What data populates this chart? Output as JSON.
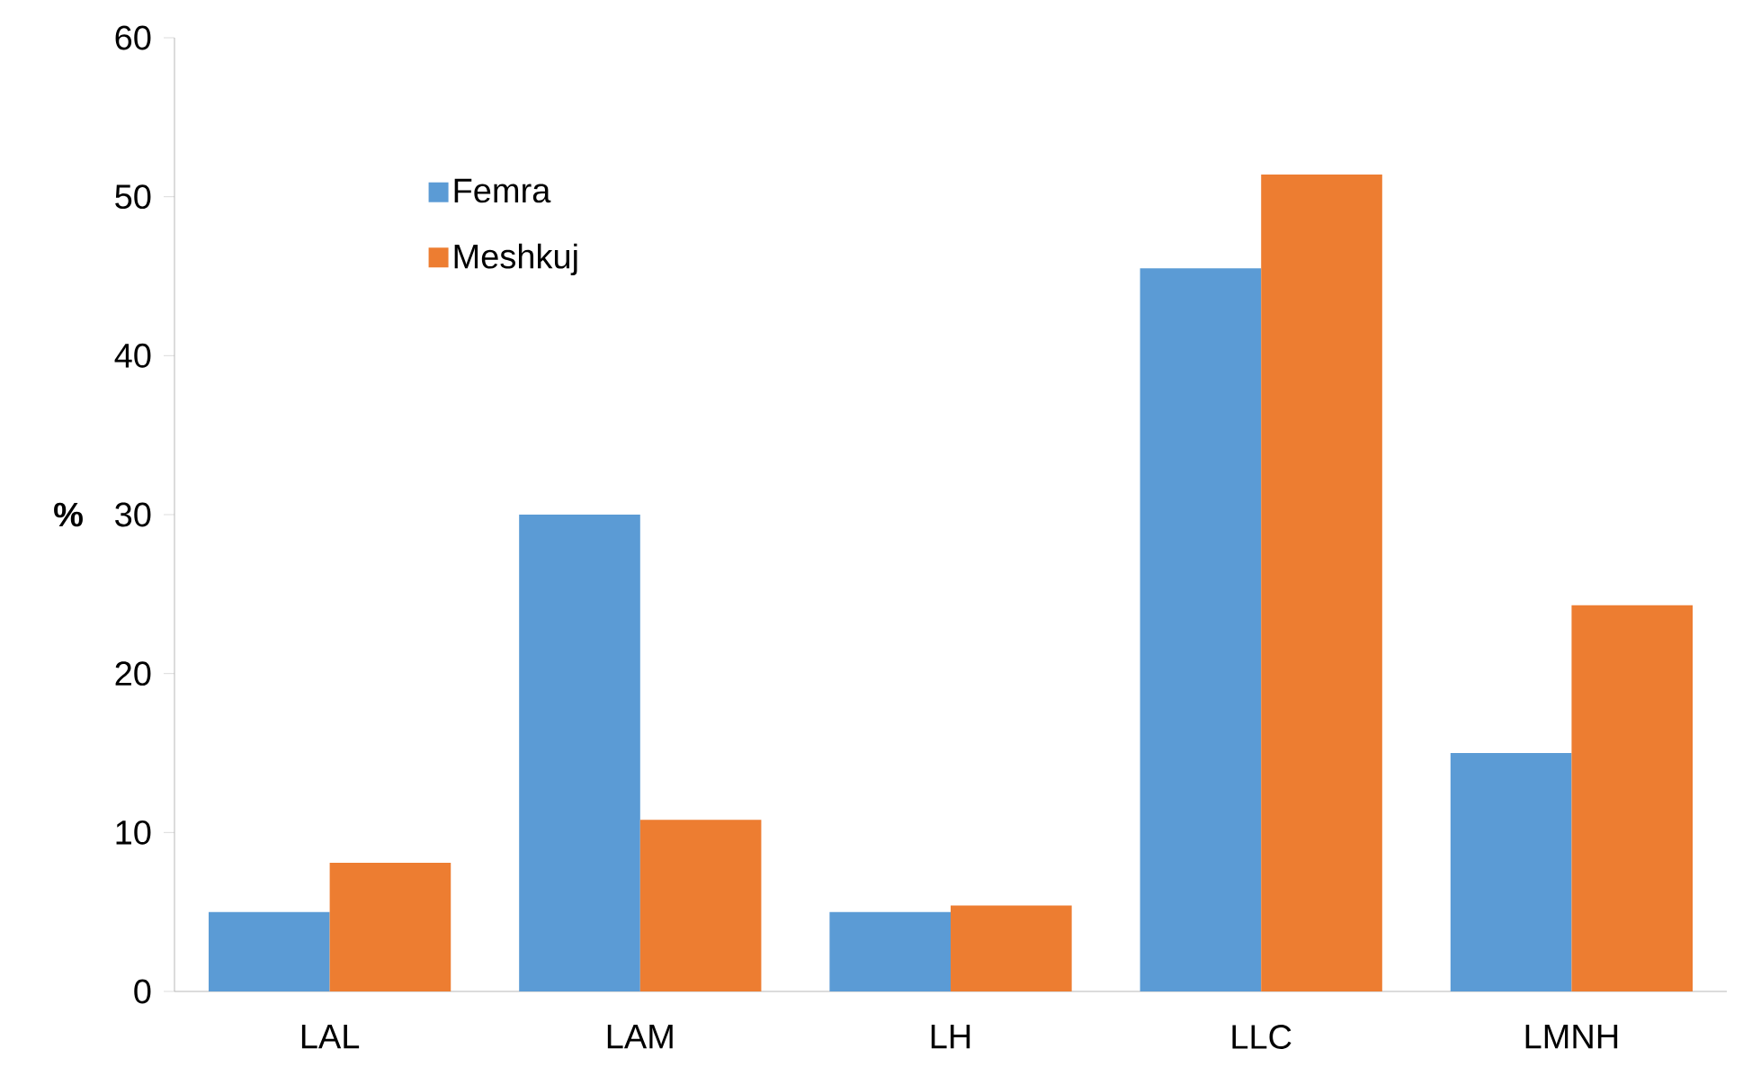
{
  "chart_data": {
    "type": "bar",
    "ylabel": "%",
    "categories": [
      "LAL",
      "LAM",
      "LH",
      "LLC",
      "LMNH"
    ],
    "series": [
      {
        "name": "Femra",
        "color": "#5b9bd5",
        "values": [
          5,
          30,
          5,
          45.5,
          15
        ]
      },
      {
        "name": "Meshkuj",
        "color": "#ed7d31",
        "values": [
          8.1,
          10.8,
          5.4,
          51.4,
          24.3
        ]
      }
    ],
    "ylim": [
      0,
      60
    ],
    "yticks": [
      0,
      10,
      20,
      30,
      40,
      50,
      60
    ],
    "legend": "top left"
  }
}
